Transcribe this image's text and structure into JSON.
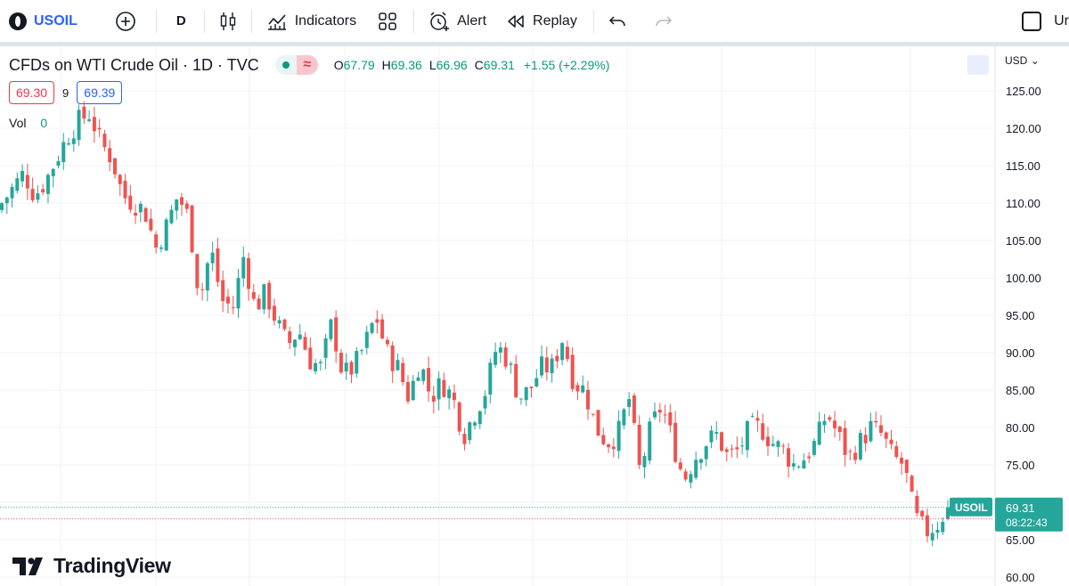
{
  "toolbar": {
    "symbol": "USOIL",
    "interval": "D",
    "indicators_label": "Indicators",
    "alert_label": "Alert",
    "replay_label": "Replay",
    "unit_cutoff": "Ur"
  },
  "legend": {
    "title": "CFDs on WTI Crude Oil · 1D · TVC",
    "open_key": "O",
    "open": "67.79",
    "high_key": "H",
    "high": "69.36",
    "low_key": "L",
    "low": "66.96",
    "close_key": "C",
    "close": "69.31",
    "change": "+1.55 (+2.29%)",
    "bid": "69.30",
    "spread": "9",
    "ask": "69.39",
    "vol_label": "Vol",
    "vol_value": "0"
  },
  "price_scale": {
    "currency": "USD",
    "ticks": [
      "125.00",
      "120.00",
      "115.00",
      "110.00",
      "105.00",
      "100.00",
      "95.00",
      "90.00",
      "85.00",
      "80.00",
      "75.00",
      "70.00",
      "65.00",
      "60.00"
    ],
    "last_price": "69.31",
    "countdown": "08:22:43",
    "symbol_tag": "USOIL"
  },
  "branding": {
    "name": "TradingView"
  },
  "colors": {
    "up": "#26a69a",
    "down": "#ef5350",
    "accent": "#2962ff",
    "bid": "#f23645"
  },
  "chart_data": {
    "type": "candlestick",
    "title": "CFDs on WTI Crude Oil · 1D · TVC",
    "ylabel": "USD",
    "ylim": [
      59.5,
      127
    ],
    "grid": true,
    "last_price": 69.31,
    "bid_line": 67.79,
    "close_path": [
      110,
      112,
      114,
      111,
      113,
      116,
      119,
      121,
      122,
      118,
      116,
      111,
      110,
      109,
      104,
      107,
      111,
      108,
      97,
      104,
      97,
      96,
      103,
      96,
      98,
      94,
      91,
      93,
      89,
      88,
      94,
      87,
      88,
      91,
      95,
      90,
      88,
      84,
      89,
      84,
      86,
      84,
      79,
      82,
      85,
      91,
      89,
      84,
      85,
      88,
      88,
      92,
      86,
      85,
      80,
      78,
      79,
      84,
      74,
      80,
      83,
      78,
      73,
      76,
      78,
      79,
      76,
      77,
      80,
      80,
      78,
      77,
      75,
      76,
      78,
      82,
      79,
      76,
      78,
      80,
      79,
      76,
      75,
      68,
      66,
      67,
      69.31
    ],
    "candles_count": 185
  }
}
